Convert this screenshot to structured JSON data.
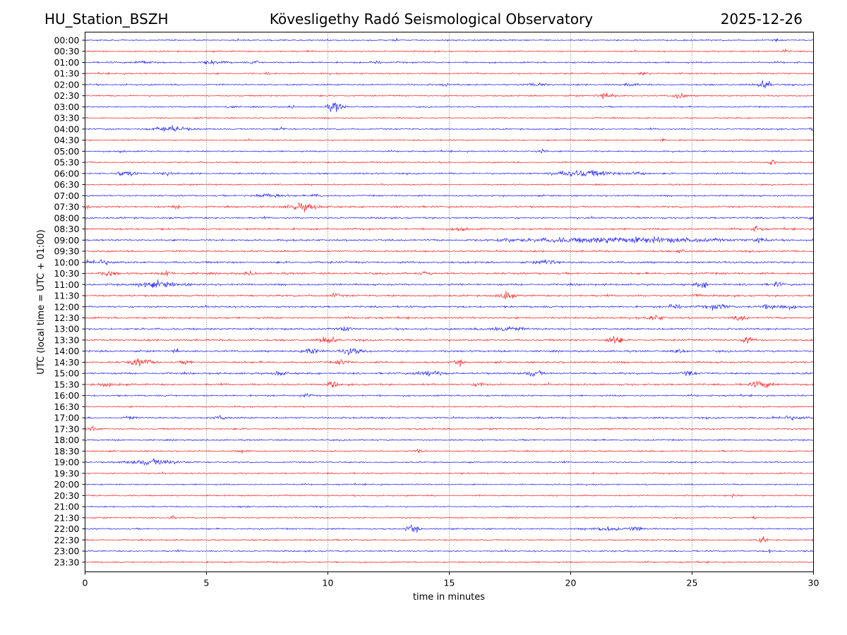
{
  "header": {
    "station": "HU_Station_BSZH",
    "title": "Kövesligethy Radó Seismological Observatory",
    "date": "2025-12-26"
  },
  "chart_data": {
    "type": "line",
    "title": "Kövesligethy Radó Seismological Observatory",
    "xlabel": "time in minutes",
    "ylabel": "UTC (local time = UTC + 01:00)",
    "xlim": [
      0,
      30
    ],
    "xticks": [
      "0",
      "5",
      "10",
      "15",
      "20",
      "25",
      "30"
    ],
    "grid": "vertical dotted at x ticks",
    "colors": {
      "even_row": "#0000ff",
      "odd_row": "#ff0000",
      "frame": "#000000",
      "grid": "#555555"
    },
    "rows": [
      {
        "label": "00:00",
        "noise": 1.0,
        "events": [
          [
            12.8,
            2.0,
            0.2
          ],
          [
            10,
            1.5,
            0.2
          ],
          [
            28.5,
            1.5,
            0.2
          ]
        ]
      },
      {
        "label": "00:30",
        "noise": 1.0,
        "events": [
          [
            28.8,
            2.5,
            0.2
          ]
        ]
      },
      {
        "label": "01:00",
        "noise": 1.1,
        "events": [
          [
            2.4,
            2.0,
            0.6
          ],
          [
            5.3,
            2.0,
            0.8
          ],
          [
            7,
            2.5,
            0.2
          ],
          [
            12,
            2.0,
            0.3
          ]
        ]
      },
      {
        "label": "01:30",
        "noise": 1.0,
        "events": [
          [
            7.6,
            2.5,
            0.2
          ],
          [
            23,
            2.0,
            0.3
          ]
        ]
      },
      {
        "label": "02:00",
        "noise": 1.1,
        "events": [
          [
            14.8,
            2.0,
            0.2
          ],
          [
            18.6,
            2.0,
            0.6
          ],
          [
            22.5,
            2.0,
            0.4
          ],
          [
            28,
            5.0,
            0.5
          ]
        ]
      },
      {
        "label": "02:30",
        "noise": 1.0,
        "events": [
          [
            21.5,
            4.0,
            0.5
          ],
          [
            24.5,
            4.0,
            0.4
          ]
        ]
      },
      {
        "label": "03:00",
        "noise": 1.0,
        "events": [
          [
            6,
            2.0,
            0.3
          ],
          [
            10.3,
            6.0,
            0.5
          ],
          [
            8.5,
            2.0,
            0.2
          ]
        ]
      },
      {
        "label": "03:30",
        "noise": 0.9,
        "events": []
      },
      {
        "label": "04:00",
        "noise": 1.0,
        "events": [
          [
            3.5,
            3.5,
            1.2
          ],
          [
            8,
            2.0,
            0.3
          ],
          [
            30,
            1.5,
            0.3
          ]
        ]
      },
      {
        "label": "04:30",
        "noise": 0.9,
        "events": [
          [
            23.8,
            1.5,
            0.3
          ]
        ]
      },
      {
        "label": "05:00",
        "noise": 1.0,
        "events": [
          [
            18.8,
            3.0,
            0.3
          ],
          [
            1.5,
            1.5,
            0.3
          ]
        ]
      },
      {
        "label": "05:30",
        "noise": 1.0,
        "events": [
          [
            28.3,
            3.5,
            0.3
          ]
        ]
      },
      {
        "label": "06:00",
        "noise": 1.1,
        "events": [
          [
            1.7,
            4.0,
            0.6
          ],
          [
            3.4,
            2.5,
            0.4
          ],
          [
            20.5,
            4.0,
            2.0
          ],
          [
            22.8,
            3.5,
            0.5
          ]
        ]
      },
      {
        "label": "06:30",
        "noise": 1.0,
        "events": []
      },
      {
        "label": "07:00",
        "noise": 1.1,
        "events": [
          [
            7.5,
            2.5,
            1.0
          ],
          [
            9.5,
            2.5,
            0.3
          ]
        ]
      },
      {
        "label": "07:30",
        "noise": 1.2,
        "events": [
          [
            0.1,
            3.5,
            0.2
          ],
          [
            9,
            4.5,
            1.0
          ],
          [
            3.8,
            2.0,
            0.3
          ]
        ]
      },
      {
        "label": "08:00",
        "noise": 1.2,
        "events": [
          [
            30,
            2.0,
            0.3
          ]
        ]
      },
      {
        "label": "08:30",
        "noise": 1.3,
        "events": [
          [
            15.5,
            2.5,
            0.5
          ],
          [
            27.7,
            3.5,
            0.3
          ]
        ]
      },
      {
        "label": "09:00",
        "noise": 1.3,
        "events": [
          [
            17.3,
            3.0,
            0.4
          ],
          [
            22,
            3.5,
            6.0
          ],
          [
            27.8,
            3.0,
            0.4
          ]
        ]
      },
      {
        "label": "09:30",
        "noise": 1.2,
        "events": [
          [
            24.5,
            2.5,
            0.3
          ]
        ]
      },
      {
        "label": "10:00",
        "noise": 1.4,
        "events": [
          [
            0.5,
            3.0,
            1.0
          ],
          [
            19,
            2.5,
            0.6
          ]
        ]
      },
      {
        "label": "10:30",
        "noise": 1.4,
        "events": [
          [
            1,
            3.0,
            0.5
          ],
          [
            3.4,
            3.5,
            0.3
          ],
          [
            6.8,
            2.5,
            0.4
          ],
          [
            14,
            2.0,
            0.3
          ]
        ]
      },
      {
        "label": "11:00",
        "noise": 1.3,
        "events": [
          [
            3,
            3.5,
            1.5
          ],
          [
            25.4,
            4.0,
            0.4
          ],
          [
            28.5,
            3.0,
            0.4
          ]
        ]
      },
      {
        "label": "11:30",
        "noise": 1.3,
        "events": [
          [
            17.3,
            5.5,
            0.5
          ],
          [
            10.3,
            2.5,
            0.3
          ],
          [
            25.2,
            2.5,
            0.3
          ]
        ]
      },
      {
        "label": "12:00",
        "noise": 1.3,
        "events": [
          [
            24.3,
            4.0,
            0.4
          ],
          [
            26,
            3.0,
            0.8
          ],
          [
            28.5,
            3.0,
            1.2
          ]
        ]
      },
      {
        "label": "12:30",
        "noise": 1.3,
        "events": [
          [
            23.5,
            3.5,
            0.5
          ],
          [
            27,
            3.5,
            0.4
          ]
        ]
      },
      {
        "label": "13:00",
        "noise": 1.3,
        "events": [
          [
            10.7,
            3.0,
            0.4
          ],
          [
            17.2,
            3.5,
            1.2
          ]
        ]
      },
      {
        "label": "13:30",
        "noise": 1.3,
        "events": [
          [
            10,
            5.5,
            0.5
          ],
          [
            21.8,
            6.0,
            0.5
          ],
          [
            27.3,
            3.5,
            0.4
          ]
        ]
      },
      {
        "label": "14:00",
        "noise": 1.3,
        "events": [
          [
            3.8,
            3.5,
            0.2
          ],
          [
            9.3,
            3.5,
            0.6
          ],
          [
            11,
            5.0,
            0.6
          ],
          [
            24.5,
            3.0,
            0.4
          ]
        ]
      },
      {
        "label": "14:30",
        "noise": 1.3,
        "events": [
          [
            2.3,
            4.5,
            0.8
          ],
          [
            4.2,
            3.5,
            0.3
          ],
          [
            10.6,
            3.5,
            0.4
          ],
          [
            15.4,
            3.5,
            0.3
          ]
        ]
      },
      {
        "label": "15:00",
        "noise": 1.3,
        "events": [
          [
            8,
            3.5,
            0.4
          ],
          [
            14.2,
            4.0,
            0.8
          ],
          [
            18.5,
            3.5,
            0.6
          ],
          [
            24.9,
            3.0,
            0.4
          ]
        ]
      },
      {
        "label": "15:30",
        "noise": 1.3,
        "events": [
          [
            1,
            2.5,
            0.6
          ],
          [
            10.2,
            4.0,
            0.3
          ],
          [
            16.3,
            3.0,
            0.4
          ],
          [
            27.9,
            4.0,
            0.8
          ]
        ]
      },
      {
        "label": "16:00",
        "noise": 1.1,
        "events": [
          [
            9.1,
            2.0,
            0.3
          ]
        ]
      },
      {
        "label": "16:30",
        "noise": 1.0,
        "events": []
      },
      {
        "label": "17:00",
        "noise": 1.2,
        "events": [
          [
            1.8,
            2.5,
            0.3
          ],
          [
            5.6,
            2.5,
            0.4
          ],
          [
            29,
            2.0,
            1.2
          ]
        ]
      },
      {
        "label": "17:30",
        "noise": 1.1,
        "events": [
          [
            0.3,
            2.5,
            0.4
          ]
        ]
      },
      {
        "label": "18:00",
        "noise": 1.1,
        "events": []
      },
      {
        "label": "18:30",
        "noise": 1.0,
        "events": [
          [
            6.6,
            2.5,
            0.3
          ],
          [
            13.8,
            2.0,
            0.3
          ]
        ]
      },
      {
        "label": "19:00",
        "noise": 1.0,
        "events": [
          [
            2.8,
            3.5,
            1.8
          ]
        ]
      },
      {
        "label": "19:30",
        "noise": 1.0,
        "events": []
      },
      {
        "label": "20:00",
        "noise": 0.9,
        "events": []
      },
      {
        "label": "20:30",
        "noise": 1.0,
        "events": [
          [
            26.8,
            2.0,
            0.3
          ]
        ]
      },
      {
        "label": "21:00",
        "noise": 0.9,
        "events": [
          [
            6.6,
            1.5,
            0.3
          ]
        ]
      },
      {
        "label": "21:30",
        "noise": 0.9,
        "events": [
          [
            3.6,
            3.0,
            0.2
          ],
          [
            27.6,
            2.5,
            0.2
          ]
        ]
      },
      {
        "label": "22:00",
        "noise": 1.0,
        "events": [
          [
            13.5,
            5.0,
            0.4
          ],
          [
            21.5,
            2.5,
            1.2
          ],
          [
            22.7,
            2.5,
            0.5
          ]
        ]
      },
      {
        "label": "22:30",
        "noise": 1.0,
        "events": [
          [
            27.9,
            3.5,
            0.3
          ]
        ]
      },
      {
        "label": "23:00",
        "noise": 1.0,
        "events": [
          [
            28.2,
            2.5,
            0.2
          ]
        ]
      },
      {
        "label": "23:30",
        "noise": 1.0,
        "events": []
      }
    ]
  }
}
